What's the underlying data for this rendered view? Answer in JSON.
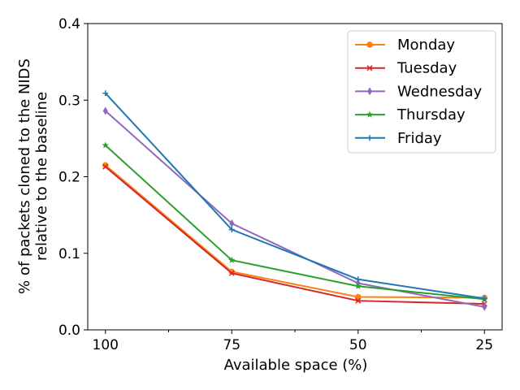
{
  "chart_data": {
    "type": "line",
    "title": "",
    "xlabel": "Available space (%)",
    "ylabel": [
      "% of packets cloned to the NIDS",
      "relative to the baseline"
    ],
    "categories": [
      "100",
      "75",
      "50",
      "25"
    ],
    "ylim": [
      0,
      0.4
    ],
    "yticks": [
      "0.0",
      "0.1",
      "0.2",
      "0.3",
      "0.4"
    ],
    "grid": false,
    "legend_position": "top-right",
    "series": [
      {
        "name": "Monday",
        "color": "#ff7f0e",
        "marker": "circle",
        "values": [
          0.215,
          0.076,
          0.043,
          0.042
        ]
      },
      {
        "name": "Tuesday",
        "color": "#d62728",
        "marker": "x",
        "values": [
          0.213,
          0.074,
          0.038,
          0.034
        ]
      },
      {
        "name": "Wednesday",
        "color": "#9467bd",
        "marker": "diamond",
        "values": [
          0.286,
          0.139,
          0.061,
          0.03
        ]
      },
      {
        "name": "Thursday",
        "color": "#2ca02c",
        "marker": "star",
        "values": [
          0.241,
          0.091,
          0.057,
          0.04
        ]
      },
      {
        "name": "Friday",
        "color": "#1f77b4",
        "marker": "plus",
        "values": [
          0.309,
          0.131,
          0.066,
          0.041
        ]
      }
    ]
  }
}
